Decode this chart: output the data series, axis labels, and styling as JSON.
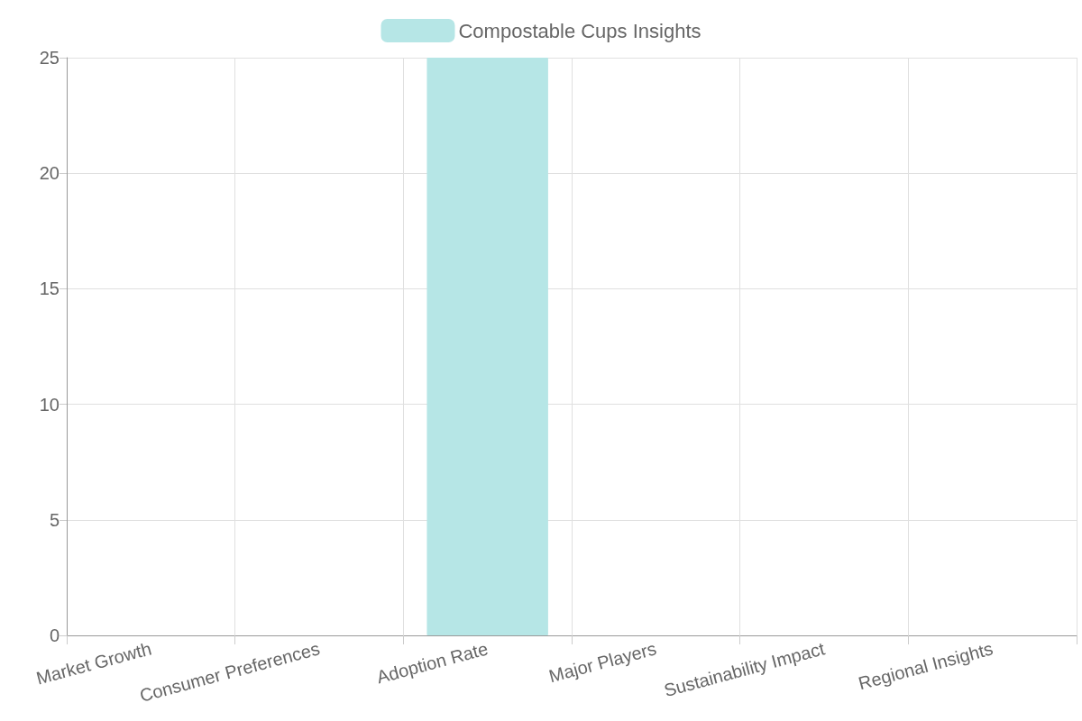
{
  "chart_data": {
    "type": "bar",
    "categories": [
      "Market Growth",
      "Consumer Preferences",
      "Adoption Rate",
      "Major Players",
      "Sustainability Impact",
      "Regional Insights"
    ],
    "series": [
      {
        "name": "Compostable Cups Insights",
        "color": "#b6e6e6",
        "values": [
          null,
          null,
          25,
          null,
          null,
          null
        ]
      }
    ],
    "ylim": [
      0,
      25
    ],
    "yticks": [
      0,
      5,
      10,
      15,
      20,
      25
    ],
    "grid": true,
    "legend": "top"
  }
}
